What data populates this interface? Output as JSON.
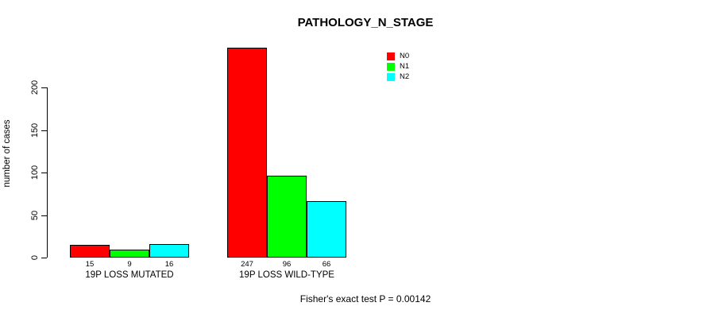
{
  "title": "PATHOLOGY_N_STAGE",
  "footer": "Fisher's exact test P = 0.00142",
  "colors": {
    "n0": "#FF0000",
    "n1": "#00FF00",
    "n2": "#00FFFF",
    "axis": "#000000",
    "background": "#FFFFFF"
  },
  "chart_data": {
    "type": "bar",
    "title": "PATHOLOGY_N_STAGE",
    "xlabel": "",
    "ylabel": "number of cases",
    "ylim": [
      0,
      250
    ],
    "yticks": [
      0,
      50,
      100,
      150,
      200
    ],
    "grid": false,
    "categories": [
      "19P LOSS MUTATED",
      "19P LOSS WILD-TYPE"
    ],
    "series": [
      {
        "name": "N0",
        "color": "#FF0000",
        "values": [
          15,
          247
        ]
      },
      {
        "name": "N1",
        "color": "#00FF00",
        "values": [
          9,
          96
        ]
      },
      {
        "name": "N2",
        "color": "#00FFFF",
        "values": [
          16,
          66
        ]
      }
    ],
    "bar_value_labels": [
      [
        "15",
        "9",
        "16"
      ],
      [
        "247",
        "96",
        "66"
      ]
    ],
    "legend": {
      "position": "top-right",
      "entries": [
        {
          "label": "N0",
          "color": "#FF0000"
        },
        {
          "label": "N1",
          "color": "#00FF00"
        },
        {
          "label": "N2",
          "color": "#00FFFF"
        }
      ]
    },
    "annotation": "Fisher's exact test P = 0.00142"
  }
}
